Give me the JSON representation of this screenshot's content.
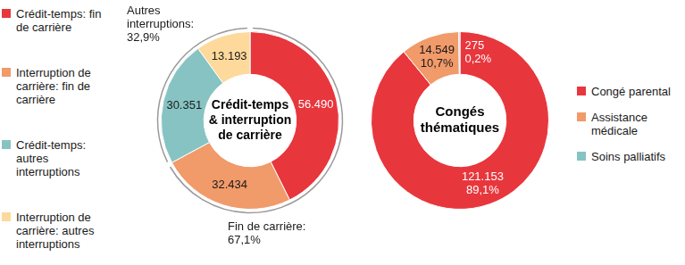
{
  "chart_data": [
    {
      "type": "doughnut",
      "title": "Crédit-temps & interruption de carrière",
      "categories": [
        "Crédit-temps: fin de carrière",
        "Interruption de carrière: fin de carrière",
        "Crédit-temps: autres interruptions",
        "Interruption de carrière: autres interruptions"
      ],
      "values": [
        56490,
        32434,
        30351,
        13193
      ],
      "value_labels": [
        "56.490",
        "32.434",
        "30.351",
        "13.193"
      ],
      "colors": [
        "#e8363d",
        "#f19a6a",
        "#87c3c3",
        "#fdd99b"
      ],
      "data_labels": true,
      "legend": "left",
      "annotations": [
        {
          "text": "Fin de carrière:",
          "value": 67.1,
          "label": "67,1%"
        },
        {
          "text": "Autres interruptions:",
          "value": 32.9,
          "label": "32,9%"
        }
      ]
    },
    {
      "type": "doughnut",
      "title": "Congés thématiques",
      "categories": [
        "Congé parental",
        "Assistance médicale",
        "Soins palliatifs"
      ],
      "values": [
        121153,
        14549,
        275
      ],
      "value_labels": [
        "121.153",
        "14.549",
        "275"
      ],
      "percentages": [
        89.1,
        10.7,
        0.2
      ],
      "percentage_labels": [
        "89,1%",
        "10,7%",
        "0,2%"
      ],
      "colors": [
        "#e8363d",
        "#f19a6a",
        "#87c3c3"
      ],
      "data_labels": true,
      "legend": "right"
    }
  ]
}
